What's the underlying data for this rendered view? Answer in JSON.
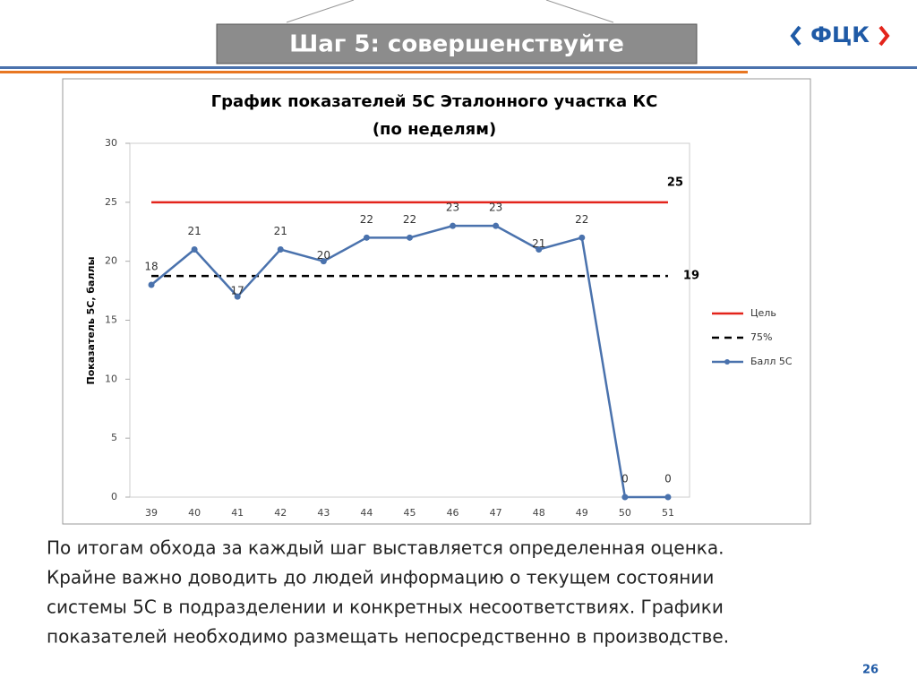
{
  "header": {
    "title": "Шаг 5: совершенствуйте",
    "logo": "ФЦК"
  },
  "chart_data": {
    "type": "line",
    "title": [
      "График показателей 5С Эталонного участка КС",
      "(по неделям)"
    ],
    "ylabel": "Показатель 5С, баллы",
    "categories": [
      "39",
      "40",
      "41",
      "42",
      "43",
      "44",
      "45",
      "46",
      "47",
      "48",
      "49",
      "50",
      "51"
    ],
    "ylim": [
      0,
      30
    ],
    "yticks": [
      0,
      5,
      10,
      15,
      20,
      25,
      30
    ],
    "series": [
      {
        "name": "Цель",
        "color": "#e3241b",
        "line_style": "solid",
        "marker": false,
        "values": [
          25,
          25,
          25,
          25,
          25,
          25,
          25,
          25,
          25,
          25,
          25,
          25,
          25
        ],
        "value_labels": [
          null,
          null,
          null,
          null,
          null,
          null,
          null,
          null,
          null,
          null,
          null,
          null,
          "25"
        ]
      },
      {
        "name": "75%",
        "color": "#000000",
        "line_style": "dashed",
        "marker": false,
        "values": [
          18.75,
          18.75,
          18.75,
          18.75,
          18.75,
          18.75,
          18.75,
          18.75,
          18.75,
          18.75,
          18.75,
          18.75,
          18.75
        ],
        "value_labels": [
          null,
          null,
          null,
          null,
          null,
          null,
          null,
          null,
          null,
          null,
          null,
          null,
          "19"
        ]
      },
      {
        "name": "Балл 5С",
        "color": "#4a72ad",
        "line_style": "solid",
        "marker": true,
        "values": [
          18,
          21,
          17,
          21,
          20,
          22,
          22,
          23,
          23,
          21,
          22,
          0,
          0
        ]
      }
    ]
  },
  "body": [
    "По итогам обхода за каждый шаг выставляется определенная оценка.",
    "Крайне важно доводить до людей информацию о текущем состоянии",
    "системы 5С в подразделении и конкретных несоответствиях. Графики",
    "показателей необходимо размещать непосредственно в производстве."
  ],
  "page_number": "26"
}
